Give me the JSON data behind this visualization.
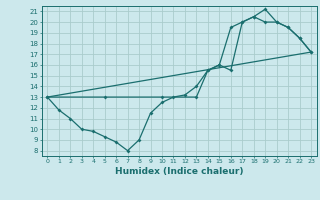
{
  "xlabel": "Humidex (Indice chaleur)",
  "background_color": "#cce8ec",
  "grid_color": "#aacccc",
  "line_color": "#1a6e6e",
  "xlim": [
    -0.5,
    23.5
  ],
  "ylim": [
    7.5,
    21.5
  ],
  "xticks": [
    0,
    1,
    2,
    3,
    4,
    5,
    6,
    7,
    8,
    9,
    10,
    11,
    12,
    13,
    14,
    15,
    16,
    17,
    18,
    19,
    20,
    21,
    22,
    23
  ],
  "yticks": [
    8,
    9,
    10,
    11,
    12,
    13,
    14,
    15,
    16,
    17,
    18,
    19,
    20,
    21
  ],
  "line1_x": [
    0,
    1,
    2,
    3,
    4,
    5,
    6,
    7,
    8,
    9,
    10,
    11,
    12,
    13,
    14,
    15,
    16,
    17,
    18,
    19,
    20,
    21,
    22,
    23
  ],
  "line1_y": [
    13,
    11.8,
    11,
    10,
    9.8,
    9.3,
    8.8,
    8,
    9,
    11.5,
    12.5,
    13,
    13.2,
    14,
    15.5,
    16,
    19.5,
    20,
    20.5,
    21.2,
    20,
    19.5,
    18.5,
    17.2
  ],
  "line2_x": [
    0,
    23
  ],
  "line2_y": [
    13,
    17.2
  ],
  "line3_x": [
    0,
    5,
    10,
    13,
    14,
    15,
    16,
    17,
    18,
    19,
    20,
    21,
    22,
    23
  ],
  "line3_y": [
    13,
    13,
    13,
    13,
    15.5,
    16,
    15.5,
    20,
    20.5,
    20,
    20,
    19.5,
    18.5,
    17.2
  ]
}
